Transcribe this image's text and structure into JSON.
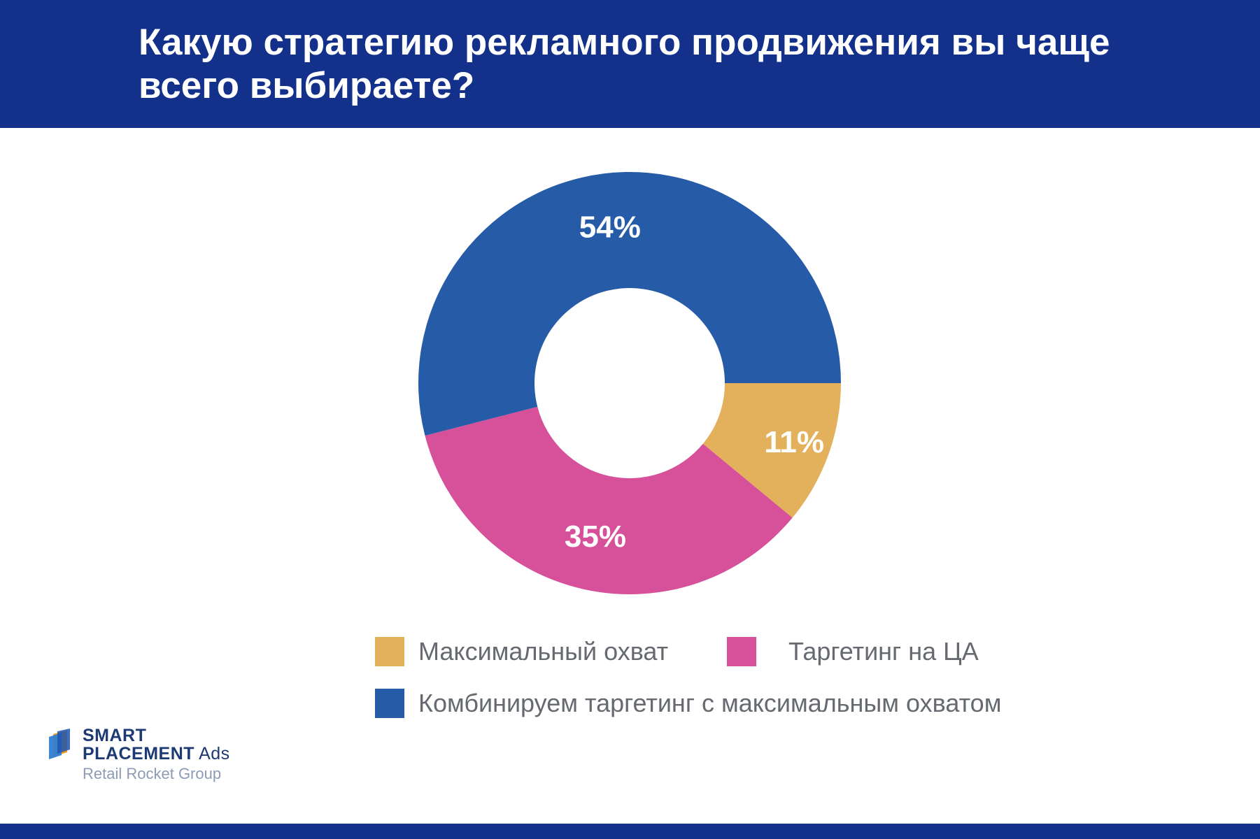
{
  "header": {
    "title": "Какую стратегию рекламного продвижения вы чаще всего выбираете?"
  },
  "chart_data": {
    "type": "pie",
    "donut": true,
    "title": "Какую стратегию рекламного продвижения вы чаще всего выбираете?",
    "categories": [
      "Максимальный охват",
      "Таргетинг на ЦА",
      "Комбинируем таргетинг с максимальным охватом"
    ],
    "values": [
      11,
      35,
      54
    ],
    "labels": [
      "11%",
      "35%",
      "54%"
    ],
    "colors": [
      "#e3b15b",
      "#d7509a",
      "#265ba8"
    ],
    "legend_placement": "bottom"
  },
  "legend": {
    "items": [
      {
        "label": "Максимальный охват",
        "color": "#e3b15b"
      },
      {
        "label": "Таргетинг на ЦА",
        "color": "#d7509a"
      },
      {
        "label": "Комбинируем таргетинг с максимальным охватом",
        "color": "#265ba8"
      }
    ]
  },
  "logo": {
    "line1": "SMART",
    "line2": "PLACEMENT",
    "line2_suffix": "Ads",
    "line3": "Retail Rocket Group"
  },
  "colors": {
    "header_bg": "#13308a",
    "text_white": "#ffffff",
    "legend_text": "#666a70"
  }
}
